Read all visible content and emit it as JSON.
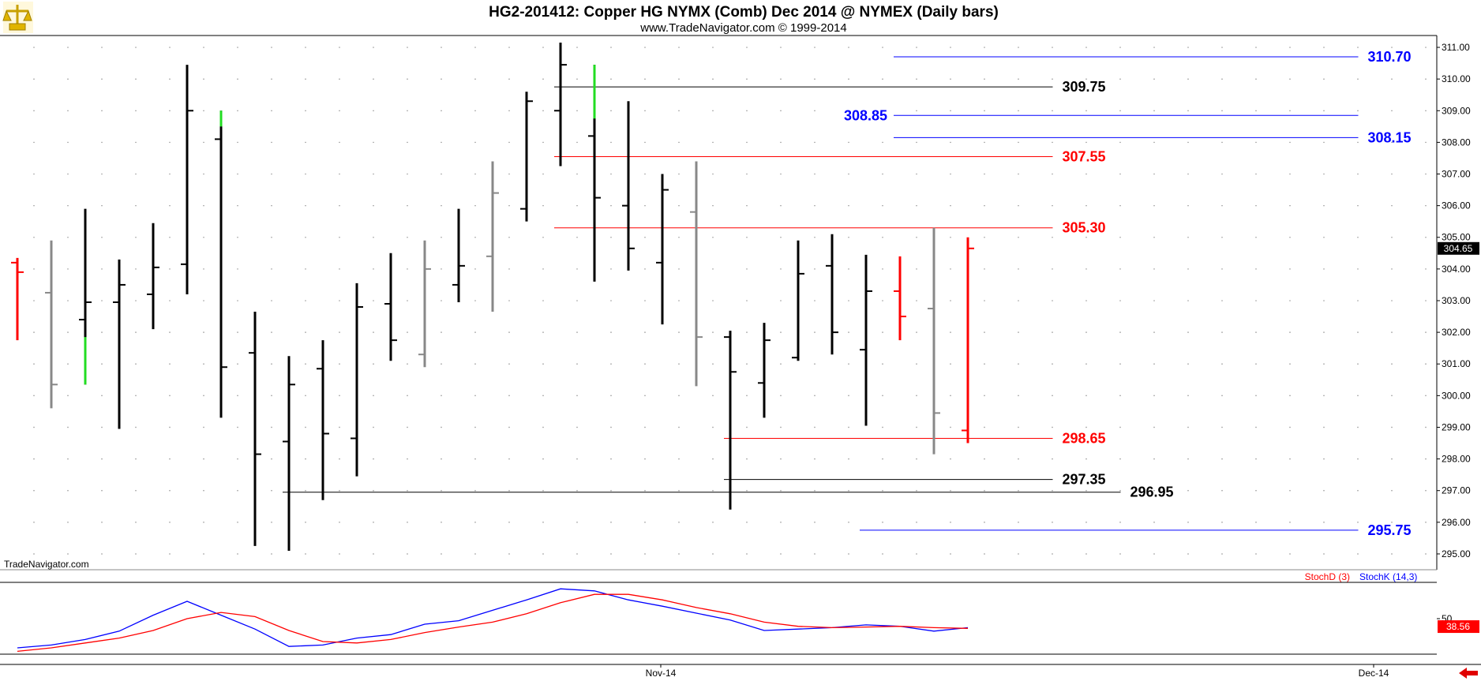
{
  "header": {
    "title": "HG2-201412:  Copper HG NYMX (Comb) Dec 2014 @ NYMEX  (Daily bars)",
    "subtitle": "www.TradeNavigator.com © 1999-2014"
  },
  "watermark": "TradeNavigator.com",
  "logo_icon": "scales-logo-icon",
  "nav_arrow_icon": "left-arrow-icon",
  "colors": {
    "up_bar": "#000000",
    "neutral_bar": "#888888",
    "red_bar": "#ff0000",
    "green_segment": "#22dd22",
    "blue_level": "#0000ff",
    "red_level": "#ff0000",
    "black_level": "#000000",
    "stochK": "#0000ff",
    "stochD": "#ff0000"
  },
  "chart_data": [
    {
      "type": "ohlc",
      "title": "HG2-201412:  Copper HG NYMX (Comb) Dec 2014 @ NYMEX  (Daily bars)",
      "ylim": [
        294.6,
        311.2
      ],
      "y_ticks": [
        "311.00",
        "310.00",
        "309.00",
        "308.00",
        "307.00",
        "306.00",
        "305.00",
        "304.00",
        "303.00",
        "302.00",
        "301.00",
        "300.00",
        "299.00",
        "298.00",
        "297.00",
        "296.00",
        "295.00"
      ],
      "x_labels": [
        {
          "label": "Nov-14",
          "bar_index": 19
        },
        {
          "label": "Dec-14",
          "bar_index": 40
        }
      ],
      "last_price": "304.65",
      "bars": [
        {
          "o": 304.2,
          "h": 304.35,
          "l": 301.75,
          "c": 303.9,
          "color": "red"
        },
        {
          "o": 303.25,
          "h": 304.9,
          "l": 299.6,
          "c": 300.35,
          "color": "gray"
        },
        {
          "o": 302.4,
          "h": 305.9,
          "l": 300.35,
          "c": 302.95,
          "color": "black",
          "green_from": 300.35,
          "green_to": 301.85
        },
        {
          "o": 302.95,
          "h": 304.3,
          "l": 298.95,
          "c": 303.5,
          "color": "black"
        },
        {
          "o": 303.2,
          "h": 305.45,
          "l": 302.1,
          "c": 304.05,
          "color": "black"
        },
        {
          "o": 304.15,
          "h": 310.45,
          "l": 303.2,
          "c": 309.0,
          "color": "black"
        },
        {
          "o": 308.1,
          "h": 309.0,
          "l": 299.3,
          "c": 300.9,
          "color": "black",
          "green_from": 308.5,
          "green_to": 309.0
        },
        {
          "o": 301.35,
          "h": 302.65,
          "l": 295.25,
          "c": 298.15,
          "color": "black"
        },
        {
          "o": 298.55,
          "h": 301.25,
          "l": 295.1,
          "c": 300.35,
          "color": "black"
        },
        {
          "o": 300.85,
          "h": 301.75,
          "l": 296.7,
          "c": 298.8,
          "color": "black"
        },
        {
          "o": 298.65,
          "h": 303.55,
          "l": 297.45,
          "c": 302.8,
          "color": "black"
        },
        {
          "o": 302.9,
          "h": 304.5,
          "l": 301.1,
          "c": 301.75,
          "color": "black"
        },
        {
          "o": 301.3,
          "h": 304.9,
          "l": 300.9,
          "c": 304.0,
          "color": "gray"
        },
        {
          "o": 303.5,
          "h": 305.9,
          "l": 302.95,
          "c": 304.1,
          "color": "black"
        },
        {
          "o": 304.4,
          "h": 307.4,
          "l": 302.65,
          "c": 306.4,
          "color": "gray"
        },
        {
          "o": 305.9,
          "h": 309.6,
          "l": 305.5,
          "c": 309.3,
          "color": "black"
        },
        {
          "o": 309.0,
          "h": 311.15,
          "l": 307.25,
          "c": 310.45,
          "color": "black"
        },
        {
          "o": 308.2,
          "h": 310.45,
          "l": 303.6,
          "c": 306.25,
          "color": "black",
          "green_from": 308.75,
          "green_to": 310.45
        },
        {
          "o": 306.0,
          "h": 309.3,
          "l": 303.95,
          "c": 304.65,
          "color": "black"
        },
        {
          "o": 304.2,
          "h": 307.0,
          "l": 302.25,
          "c": 306.5,
          "color": "black"
        },
        {
          "o": 305.8,
          "h": 307.4,
          "l": 300.3,
          "c": 301.85,
          "color": "gray"
        },
        {
          "o": 301.85,
          "h": 302.05,
          "l": 296.4,
          "c": 300.75,
          "color": "black"
        },
        {
          "o": 300.4,
          "h": 302.3,
          "l": 299.3,
          "c": 301.75,
          "color": "black"
        },
        {
          "o": 301.2,
          "h": 304.9,
          "l": 301.1,
          "c": 303.85,
          "color": "black"
        },
        {
          "o": 304.1,
          "h": 305.1,
          "l": 301.3,
          "c": 302.0,
          "color": "black"
        },
        {
          "o": 301.45,
          "h": 304.45,
          "l": 299.05,
          "c": 303.3,
          "color": "black"
        },
        {
          "o": 303.3,
          "h": 304.4,
          "l": 301.75,
          "c": 302.5,
          "color": "red"
        },
        {
          "o": 302.75,
          "h": 305.3,
          "l": 298.15,
          "c": 299.45,
          "color": "gray"
        },
        {
          "o": 298.9,
          "h": 305.0,
          "l": 298.5,
          "c": 304.65,
          "color": "red"
        }
      ],
      "levels": [
        {
          "value": 310.7,
          "label": "310.70",
          "color": "blue",
          "from_bar": 26,
          "to_bar": 39.5,
          "label_side": "right"
        },
        {
          "value": 309.75,
          "label": "309.75",
          "color": "black",
          "from_bar": 16,
          "to_bar": 30.5,
          "label_side": "right"
        },
        {
          "value": 308.85,
          "label": "308.85",
          "color": "blue",
          "from_bar": 26,
          "to_bar": 39.5,
          "label_side": "left"
        },
        {
          "value": 308.15,
          "label": "308.15",
          "color": "blue",
          "from_bar": 26,
          "to_bar": 39.5,
          "label_side": "right"
        },
        {
          "value": 307.55,
          "label": "307.55",
          "color": "red",
          "from_bar": 16,
          "to_bar": 30.5,
          "label_side": "right"
        },
        {
          "value": 305.3,
          "label": "305.30",
          "color": "red",
          "from_bar": 16,
          "to_bar": 30.5,
          "label_side": "right"
        },
        {
          "value": 298.65,
          "label": "298.65",
          "color": "red",
          "from_bar": 21,
          "to_bar": 30.5,
          "label_side": "right"
        },
        {
          "value": 297.35,
          "label": "297.35",
          "color": "black",
          "from_bar": 21,
          "to_bar": 30.5,
          "label_side": "right"
        },
        {
          "value": 296.95,
          "label": "296.95",
          "color": "black",
          "from_bar": 8,
          "to_bar": 32.5,
          "label_side": "right"
        },
        {
          "value": 295.75,
          "label": "295.75",
          "color": "blue",
          "from_bar": 25,
          "to_bar": 39.5,
          "label_side": "right"
        }
      ]
    },
    {
      "type": "line",
      "legend": [
        "StochD (3)",
        "StochK (14,3)"
      ],
      "ylim": [
        0,
        100
      ],
      "y_ticks": [
        "50"
      ],
      "last_value": "38.56",
      "series": [
        {
          "name": "StochK (14,3)",
          "color": "blue",
          "values": [
            8,
            12,
            20,
            32,
            55,
            75,
            55,
            35,
            10,
            12,
            22,
            27,
            42,
            47,
            62,
            77,
            93,
            90,
            77,
            68,
            58,
            48,
            33,
            35,
            37,
            41,
            39,
            32,
            37
          ]
        },
        {
          "name": "StochD (3)",
          "color": "red",
          "values": [
            3,
            8,
            15,
            22,
            33,
            50,
            59,
            53,
            33,
            17,
            15,
            20,
            30,
            38,
            45,
            57,
            73,
            85,
            85,
            77,
            66,
            57,
            45,
            39,
            37,
            38,
            39,
            37,
            36
          ]
        }
      ]
    }
  ]
}
